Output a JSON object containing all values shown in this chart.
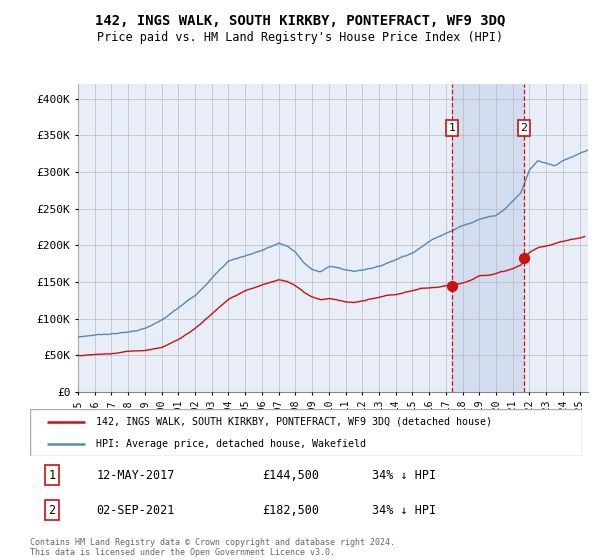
{
  "title": "142, INGS WALK, SOUTH KIRKBY, PONTEFRACT, WF9 3DQ",
  "subtitle": "Price paid vs. HM Land Registry's House Price Index (HPI)",
  "ylabel_ticks": [
    "£0",
    "£50K",
    "£100K",
    "£150K",
    "£200K",
    "£250K",
    "£300K",
    "£350K",
    "£400K"
  ],
  "ytick_values": [
    0,
    50000,
    100000,
    150000,
    200000,
    250000,
    300000,
    350000,
    400000
  ],
  "ylim": [
    0,
    420000
  ],
  "xlim_start": 1995.0,
  "xlim_end": 2025.5,
  "background_color": "#e8eef8",
  "shade_color": "#d0dcf0",
  "grid_color": "#bbbbbb",
  "sale1_date": 2017.36,
  "sale1_price": 144500,
  "sale1_label": "1",
  "sale2_date": 2021.67,
  "sale2_price": 182500,
  "sale2_label": "2",
  "hpi_color": "#5588bb",
  "price_color": "#cc1111",
  "legend_hpi": "HPI: Average price, detached house, Wakefield",
  "legend_price": "142, INGS WALK, SOUTH KIRKBY, PONTEFRACT, WF9 3DQ (detached house)",
  "annotation1_date": "12-MAY-2017",
  "annotation1_price": "£144,500",
  "annotation1_pct": "34% ↓ HPI",
  "annotation2_date": "02-SEP-2021",
  "annotation2_price": "£182,500",
  "annotation2_pct": "34% ↓ HPI",
  "footer": "Contains HM Land Registry data © Crown copyright and database right 2024.\nThis data is licensed under the Open Government Licence v3.0."
}
